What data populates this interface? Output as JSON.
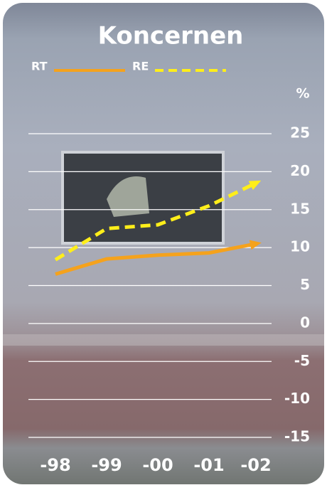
{
  "chart_data": {
    "type": "line",
    "title": "Koncernen",
    "y_unit": "%",
    "categories": [
      "-98",
      "-99",
      "-00",
      "-01",
      "-02"
    ],
    "series": [
      {
        "name": "RT",
        "color": "#f5a21c",
        "style": "solid",
        "values": [
          6.5,
          8.5,
          9.0,
          9.3,
          10.5
        ]
      },
      {
        "name": "RE",
        "color": "#ffee1a",
        "style": "dashed",
        "values": [
          8.4,
          12.5,
          13.0,
          15.5,
          18.5
        ]
      }
    ],
    "ylim": [
      -15,
      25
    ],
    "yticks": [
      25,
      20,
      15,
      10,
      5,
      0,
      -5,
      -10,
      -15
    ],
    "grid": true
  }
}
